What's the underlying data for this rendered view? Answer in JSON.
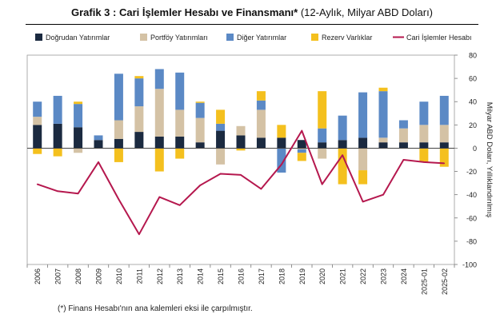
{
  "title": {
    "bold": "Grafik 3 : Cari İşlemler Hesabı ve Finansmanı*",
    "normal": " (12-Aylık, Milyar ABD Doları)"
  },
  "footnote": "(*) Finans Hesabı'nın ana kalemleri eksi ile çarpılmıştır.",
  "chart_data": {
    "type": "bar",
    "stacked": true,
    "categories": [
      "2006",
      "2007",
      "2008",
      "2009",
      "2010",
      "2011",
      "2012",
      "2013",
      "2014",
      "2015",
      "2016",
      "2017",
      "2018",
      "2019",
      "2020",
      "2021",
      "2022",
      "2023",
      "2024",
      "2025-01",
      "2025-02"
    ],
    "series": [
      {
        "name": "Doğrudan Yatırımlar",
        "kind": "bar",
        "color": "#1b2a40",
        "values": [
          20,
          21,
          18,
          7,
          8,
          14,
          10,
          10,
          5,
          15,
          11,
          9,
          9,
          7,
          5,
          7,
          9,
          5,
          5,
          5,
          5
        ]
      },
      {
        "name": "Portföy Yatırımları",
        "kind": "bar",
        "color": "#d4c2a5",
        "values": [
          7,
          0,
          -4,
          0,
          16,
          22,
          41,
          23,
          21,
          -14,
          8,
          24,
          0,
          -1,
          -9,
          0,
          -19,
          4,
          12,
          15,
          15
        ]
      },
      {
        "name": "Diğer Yatırımlar",
        "kind": "bar",
        "color": "#5b89c5",
        "values": [
          13,
          24,
          20,
          4,
          40,
          24,
          17,
          32,
          13,
          6,
          0,
          8,
          -21,
          -3,
          12,
          21,
          39,
          40,
          7,
          20,
          25
        ]
      },
      {
        "name": "Rezerv Varlıklar",
        "kind": "bar",
        "color": "#f4c01e",
        "values": [
          -5,
          -7,
          2,
          0,
          -12,
          2,
          -20,
          -9,
          1,
          12,
          -2,
          8,
          11,
          -7,
          32,
          -31,
          -12,
          3,
          0,
          -12,
          -16
        ]
      },
      {
        "name": "Cari İşlemler Hesabı",
        "kind": "line",
        "color": "#b5184e",
        "values": [
          -31,
          -37,
          -39,
          -12,
          -44,
          -74,
          -42,
          -49,
          -32,
          -22,
          -23,
          -35,
          -14,
          15,
          -31,
          -6,
          -46,
          -40,
          -10,
          -12,
          -13
        ]
      }
    ],
    "ylabel": "Milyar ABD Doları, Yıllıklandırılmış",
    "ylim": [
      -100,
      80
    ],
    "yticks": [
      -100,
      -80,
      -60,
      -40,
      -20,
      0,
      20,
      40,
      60,
      80
    ],
    "grid": false,
    "legend_position": "top"
  }
}
